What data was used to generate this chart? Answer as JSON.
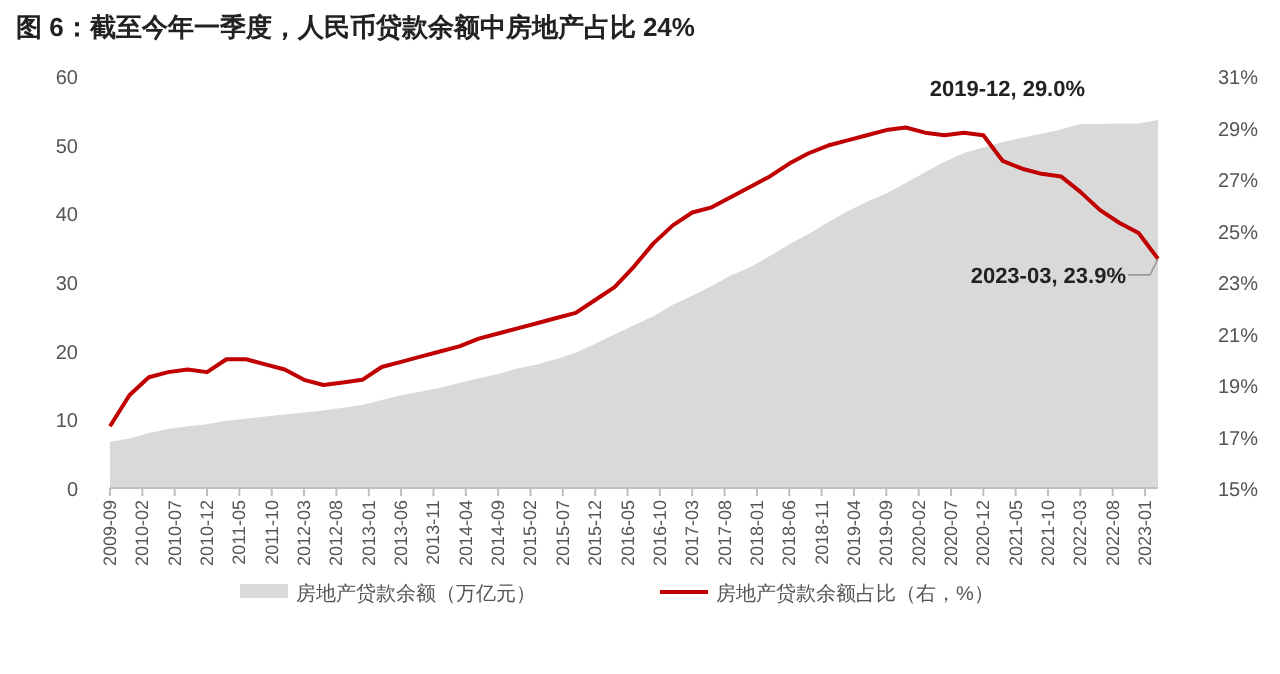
{
  "chart_data": {
    "type": "area",
    "title": "图 6：截至今年一季度，人民币贷款余额中房地产占比 24%",
    "x": [
      "2009-09",
      "2009-12",
      "2010-03",
      "2010-06",
      "2010-09",
      "2010-12",
      "2011-03",
      "2011-06",
      "2011-09",
      "2011-12",
      "2012-03",
      "2012-06",
      "2012-09",
      "2012-12",
      "2013-03",
      "2013-06",
      "2013-09",
      "2013-12",
      "2014-03",
      "2014-06",
      "2014-09",
      "2014-12",
      "2015-03",
      "2015-06",
      "2015-09",
      "2015-12",
      "2016-03",
      "2016-06",
      "2016-09",
      "2016-12",
      "2017-03",
      "2017-06",
      "2017-09",
      "2017-12",
      "2018-03",
      "2018-06",
      "2018-09",
      "2018-12",
      "2019-03",
      "2019-06",
      "2019-09",
      "2019-12",
      "2020-03",
      "2020-06",
      "2020-09",
      "2020-12",
      "2021-03",
      "2021-06",
      "2021-09",
      "2021-12",
      "2022-03",
      "2022-06",
      "2022-09",
      "2022-12",
      "2023-03"
    ],
    "series": [
      {
        "name": "房地产贷款余额（万亿元）",
        "color": "#d9d9d9",
        "values": [
          6.7,
          7.2,
          8.0,
          8.6,
          9.0,
          9.3,
          9.8,
          10.1,
          10.4,
          10.7,
          11.0,
          11.3,
          11.7,
          12.1,
          12.8,
          13.5,
          14.0,
          14.6,
          15.3,
          16.0,
          16.6,
          17.4,
          18.0,
          18.8,
          19.7,
          21.0,
          22.4,
          23.7,
          25.0,
          26.7,
          28.0,
          29.4,
          31.0,
          32.2,
          33.8,
          35.5,
          37.0,
          38.7,
          40.3,
          41.7,
          42.9,
          44.4,
          46.0,
          47.5,
          48.8,
          49.6,
          50.4,
          51.0,
          51.6,
          52.2,
          53.0,
          53.0,
          53.1,
          53.1,
          53.6
        ]
      },
      {
        "name": "房地产贷款余额占比（右，%）",
        "type": "line",
        "axis": "y2",
        "color": "#c00000",
        "values": [
          17.4,
          18.6,
          19.3,
          19.5,
          19.6,
          19.5,
          20.0,
          20.0,
          19.8,
          19.6,
          19.2,
          19.0,
          19.1,
          19.2,
          19.7,
          19.9,
          20.1,
          20.3,
          20.5,
          20.8,
          21.0,
          21.2,
          21.4,
          21.6,
          21.8,
          22.3,
          22.8,
          23.6,
          24.5,
          25.2,
          25.7,
          25.9,
          26.3,
          26.7,
          27.1,
          27.6,
          28.0,
          28.3,
          28.5,
          28.7,
          28.9,
          29.0,
          28.8,
          28.7,
          28.8,
          28.7,
          27.7,
          27.4,
          27.2,
          27.1,
          26.5,
          25.8,
          25.3,
          24.9,
          23.9
        ]
      }
    ],
    "xlim": [
      "2009-09",
      "2023-03"
    ],
    "xticks": [
      "2009-09",
      "2010-02",
      "2010-07",
      "2010-12",
      "2011-05",
      "2011-10",
      "2012-03",
      "2012-08",
      "2013-01",
      "2013-06",
      "2013-11",
      "2014-04",
      "2014-09",
      "2015-02",
      "2015-07",
      "2015-12",
      "2016-05",
      "2016-10",
      "2017-03",
      "2017-08",
      "2018-01",
      "2018-06",
      "2018-11",
      "2019-04",
      "2019-09",
      "2020-02",
      "2020-07",
      "2020-12",
      "2021-05",
      "2021-10",
      "2022-03",
      "2022-08",
      "2023-01"
    ],
    "ylim": [
      0,
      60
    ],
    "yticks": [
      0,
      10,
      20,
      30,
      40,
      50,
      60
    ],
    "y2lim": [
      15,
      31
    ],
    "y2ticks": [
      {
        "value": 15,
        "label": "15%"
      },
      {
        "value": 17,
        "label": "17%"
      },
      {
        "value": 19,
        "label": "19%"
      },
      {
        "value": 21,
        "label": "21%"
      },
      {
        "value": 23,
        "label": "23%"
      },
      {
        "value": 25,
        "label": "25%"
      },
      {
        "value": 27,
        "label": "27%"
      },
      {
        "value": 29,
        "label": "29%"
      },
      {
        "value": 31,
        "label": "31%"
      }
    ],
    "legend": "bottom",
    "annotations": [
      "2019-12, 29.0%",
      {
        "text": "2023-03, 23.9%",
        "x": "2023-03",
        "y": 23.9
      }
    ]
  }
}
